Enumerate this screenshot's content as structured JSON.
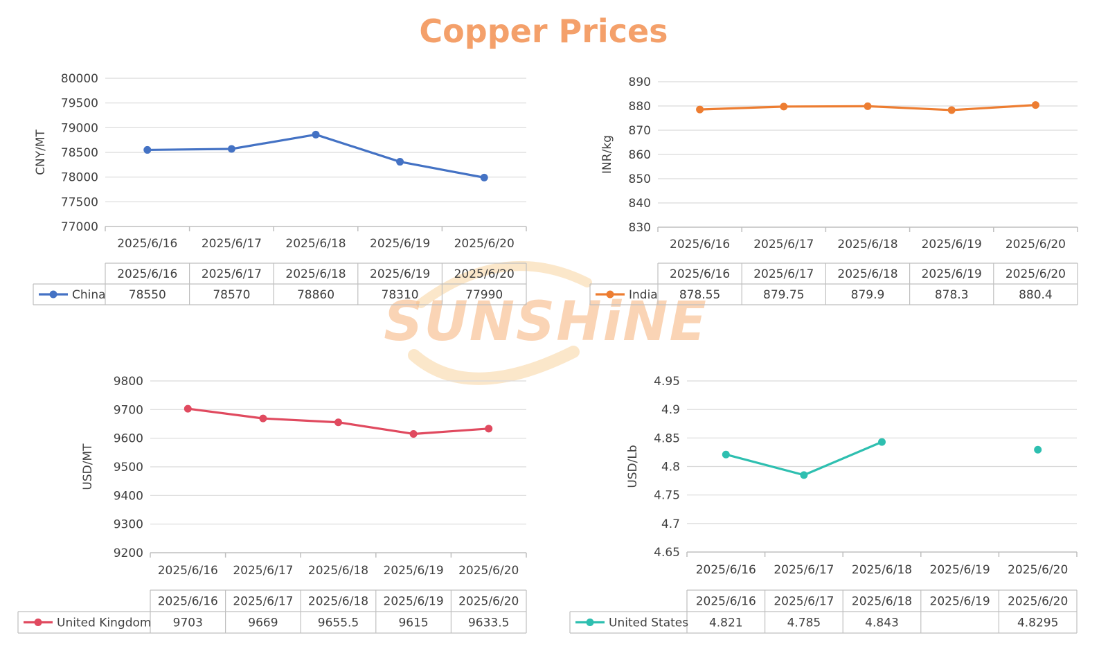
{
  "title": "Copper Prices",
  "colors": {
    "title": "#F4A06A",
    "grid": "#D9D9D9",
    "axis": "#BFBFBF",
    "text": "#404040"
  },
  "watermark": {
    "text": "SUNSHiNE",
    "color": "#F6B27A",
    "swoosh_color": "#F7C98A"
  },
  "chart_data": [
    {
      "type": "line",
      "ylabel": "CNY/MT",
      "ylim": [
        77000,
        80000
      ],
      "yticks": [
        77000,
        77500,
        78000,
        78500,
        79000,
        79500,
        80000
      ],
      "categories": [
        "2025/6/16",
        "2025/6/17",
        "2025/6/18",
        "2025/6/19",
        "2025/6/20"
      ],
      "series": [
        {
          "name": "China",
          "color": "#4472C4",
          "values": [
            78550,
            78570,
            78860,
            78310,
            77990
          ]
        }
      ],
      "table_values": [
        "78550",
        "78570",
        "78860",
        "78310",
        "77990"
      ],
      "grid": true,
      "data_table": true
    },
    {
      "type": "line",
      "ylabel": "INR/kg",
      "ylim": [
        830,
        890
      ],
      "yticks": [
        830,
        840,
        850,
        860,
        870,
        880,
        890
      ],
      "categories": [
        "2025/6/16",
        "2025/6/17",
        "2025/6/18",
        "2025/6/19",
        "2025/6/20"
      ],
      "series": [
        {
          "name": "India",
          "color": "#ED7D31",
          "values": [
            878.55,
            879.75,
            879.9,
            878.3,
            880.4
          ]
        }
      ],
      "table_values": [
        "878.55",
        "879.75",
        "879.9",
        "878.3",
        "880.4"
      ],
      "grid": true,
      "data_table": true
    },
    {
      "type": "line",
      "ylabel": "USD/MT",
      "ylim": [
        9200,
        9800
      ],
      "yticks": [
        9200,
        9300,
        9400,
        9500,
        9600,
        9700,
        9800
      ],
      "categories": [
        "2025/6/16",
        "2025/6/17",
        "2025/6/18",
        "2025/6/19",
        "2025/6/20"
      ],
      "series": [
        {
          "name": "United Kingdom",
          "color": "#E04A5F",
          "values": [
            9703,
            9669,
            9655.5,
            9615,
            9633.5
          ]
        }
      ],
      "table_values": [
        "9703",
        "9669",
        "9655.5",
        "9615",
        "9633.5"
      ],
      "grid": true,
      "data_table": true
    },
    {
      "type": "line",
      "ylabel": "USD/Lb",
      "ylim": [
        4.65,
        4.95
      ],
      "yticks": [
        4.65,
        4.7,
        4.75,
        4.8,
        4.85,
        4.9,
        4.95
      ],
      "categories": [
        "2025/6/16",
        "2025/6/17",
        "2025/6/18",
        "2025/6/19",
        "2025/6/20"
      ],
      "series": [
        {
          "name": "United States",
          "color": "#2EBFB0",
          "values": [
            4.821,
            4.785,
            4.843,
            null,
            4.8295
          ]
        }
      ],
      "table_values": [
        "4.821",
        "4.785",
        "4.843",
        "",
        "4.8295"
      ],
      "grid": true,
      "data_table": true
    }
  ]
}
